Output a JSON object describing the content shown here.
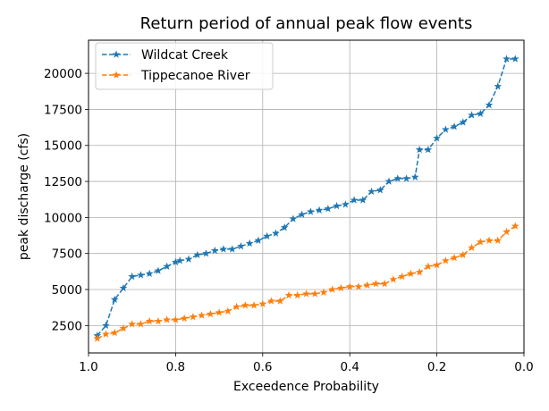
{
  "chart_data": {
    "type": "line",
    "title": "Return period of annual peak flow events",
    "xlabel": "Exceedence Probability",
    "ylabel": "peak discharge (cfs)",
    "xlim": [
      1.0,
      0.0
    ],
    "ylim": [
      600,
      22300
    ],
    "x_reversed": true,
    "grid": true,
    "legend_position": "top-left",
    "x_ticks": [
      1.0,
      0.8,
      0.6,
      0.4,
      0.2,
      0.0
    ],
    "x_tick_labels": [
      "1.0",
      "0.8",
      "0.6",
      "0.4",
      "0.2",
      "0.0"
    ],
    "y_ticks": [
      2500,
      5000,
      7500,
      10000,
      12500,
      15000,
      17500,
      20000
    ],
    "y_tick_labels": [
      "2500",
      "5000",
      "7500",
      "10000",
      "12500",
      "15000",
      "17500",
      "20000"
    ],
    "series": [
      {
        "name": "Wildcat Creek",
        "color": "#1f77b4",
        "marker": "star",
        "line_style": "dashed",
        "x": [
          0.98,
          0.96,
          0.94,
          0.92,
          0.9,
          0.88,
          0.86,
          0.84,
          0.82,
          0.8,
          0.79,
          0.77,
          0.75,
          0.73,
          0.71,
          0.69,
          0.67,
          0.65,
          0.63,
          0.61,
          0.59,
          0.57,
          0.55,
          0.53,
          0.51,
          0.49,
          0.47,
          0.45,
          0.43,
          0.41,
          0.39,
          0.37,
          0.35,
          0.33,
          0.31,
          0.29,
          0.27,
          0.25,
          0.24,
          0.22,
          0.2,
          0.18,
          0.16,
          0.14,
          0.12,
          0.1,
          0.08,
          0.06,
          0.04,
          0.02
        ],
        "y": [
          1800,
          2500,
          4300,
          5100,
          5900,
          6000,
          6100,
          6300,
          6600,
          6900,
          7000,
          7100,
          7400,
          7500,
          7700,
          7800,
          7800,
          8000,
          8200,
          8400,
          8700,
          8900,
          9300,
          9900,
          10200,
          10400,
          10500,
          10600,
          10800,
          10900,
          11200,
          11200,
          11800,
          11900,
          12500,
          12700,
          12700,
          12800,
          14700,
          14700,
          15500,
          16100,
          16300,
          16600,
          17100,
          17200,
          17800,
          19100,
          21000,
          21000
        ]
      },
      {
        "name": "Tippecanoe River",
        "color": "#ff7f0e",
        "marker": "star",
        "line_style": "dashed",
        "x": [
          0.98,
          0.96,
          0.94,
          0.92,
          0.9,
          0.88,
          0.86,
          0.84,
          0.82,
          0.8,
          0.78,
          0.76,
          0.74,
          0.72,
          0.7,
          0.68,
          0.66,
          0.64,
          0.62,
          0.6,
          0.58,
          0.56,
          0.54,
          0.52,
          0.5,
          0.48,
          0.46,
          0.44,
          0.42,
          0.4,
          0.38,
          0.36,
          0.34,
          0.32,
          0.3,
          0.28,
          0.26,
          0.24,
          0.22,
          0.2,
          0.18,
          0.16,
          0.14,
          0.12,
          0.1,
          0.08,
          0.06,
          0.04,
          0.02
        ],
        "y": [
          1600,
          1900,
          2000,
          2300,
          2600,
          2600,
          2800,
          2800,
          2900,
          2900,
          3000,
          3100,
          3200,
          3300,
          3400,
          3500,
          3800,
          3900,
          3900,
          4000,
          4200,
          4200,
          4600,
          4600,
          4700,
          4700,
          4800,
          5000,
          5100,
          5200,
          5200,
          5300,
          5400,
          5400,
          5700,
          5900,
          6100,
          6200,
          6600,
          6700,
          7000,
          7200,
          7400,
          7900,
          8300,
          8400,
          8400,
          9000,
          9400
        ]
      }
    ]
  }
}
